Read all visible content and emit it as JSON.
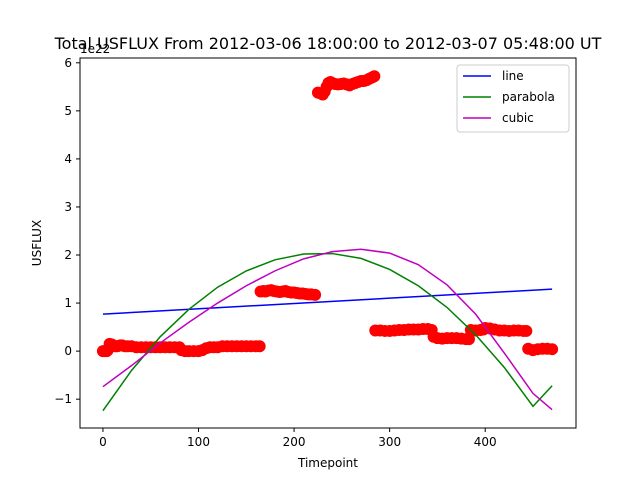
{
  "chart_data": {
    "type": "scatter",
    "title": "Total USFLUX From 2012-03-06 18:00:00 to 2012-03-07 05:48:00 UT",
    "xlabel": "Timepoint",
    "ylabel": "USFLUX",
    "y_offset_label": "1e22",
    "xlim": [
      -24,
      495
    ],
    "ylim": [
      -1.6,
      6.1
    ],
    "x_ticks": [
      0,
      100,
      200,
      300,
      400
    ],
    "x_tick_labels": [
      "0",
      "100",
      "200",
      "300",
      "400"
    ],
    "y_ticks": [
      -1,
      0,
      1,
      2,
      3,
      4,
      5,
      6
    ],
    "y_tick_labels": [
      "−1",
      "0",
      "1",
      "2",
      "3",
      "4",
      "5",
      "6"
    ],
    "grid": false,
    "legend_position": "top-right",
    "scatter_series": {
      "color": "#ff0000",
      "points": [
        [
          0,
          0.0
        ],
        [
          2,
          0.0
        ],
        [
          4,
          0.0
        ],
        [
          5,
          0.02
        ],
        [
          7,
          0.15
        ],
        [
          9,
          0.14
        ],
        [
          11,
          0.12
        ],
        [
          13,
          0.1
        ],
        [
          15,
          0.1
        ],
        [
          18,
          0.12
        ],
        [
          20,
          0.12
        ],
        [
          23,
          0.1
        ],
        [
          26,
          0.1
        ],
        [
          30,
          0.1
        ],
        [
          35,
          0.08
        ],
        [
          40,
          0.08
        ],
        [
          45,
          0.08
        ],
        [
          50,
          0.08
        ],
        [
          55,
          0.08
        ],
        [
          60,
          0.08
        ],
        [
          65,
          0.08
        ],
        [
          70,
          0.08
        ],
        [
          75,
          0.08
        ],
        [
          80,
          0.08
        ],
        [
          82,
          0.02
        ],
        [
          86,
          0.0
        ],
        [
          90,
          0.0
        ],
        [
          95,
          0.0
        ],
        [
          100,
          0.0
        ],
        [
          104,
          0.02
        ],
        [
          108,
          0.06
        ],
        [
          112,
          0.08
        ],
        [
          116,
          0.08
        ],
        [
          120,
          0.08
        ],
        [
          125,
          0.1
        ],
        [
          130,
          0.1
        ],
        [
          135,
          0.1
        ],
        [
          140,
          0.1
        ],
        [
          145,
          0.1
        ],
        [
          150,
          0.1
        ],
        [
          155,
          0.1
        ],
        [
          160,
          0.1
        ],
        [
          164,
          0.1
        ],
        [
          165,
          1.24
        ],
        [
          168,
          1.25
        ],
        [
          170,
          1.24
        ],
        [
          173,
          1.26
        ],
        [
          176,
          1.27
        ],
        [
          179,
          1.25
        ],
        [
          182,
          1.24
        ],
        [
          185,
          1.23
        ],
        [
          188,
          1.24
        ],
        [
          191,
          1.25
        ],
        [
          194,
          1.23
        ],
        [
          197,
          1.22
        ],
        [
          200,
          1.22
        ],
        [
          203,
          1.21
        ],
        [
          206,
          1.2
        ],
        [
          209,
          1.2
        ],
        [
          212,
          1.19
        ],
        [
          215,
          1.18
        ],
        [
          218,
          1.18
        ],
        [
          222,
          1.17
        ],
        [
          225,
          5.38
        ],
        [
          228,
          5.36
        ],
        [
          230,
          5.34
        ],
        [
          232,
          5.4
        ],
        [
          234,
          5.5
        ],
        [
          236,
          5.58
        ],
        [
          238,
          5.6
        ],
        [
          240,
          5.58
        ],
        [
          243,
          5.56
        ],
        [
          246,
          5.55
        ],
        [
          249,
          5.56
        ],
        [
          252,
          5.57
        ],
        [
          255,
          5.55
        ],
        [
          258,
          5.53
        ],
        [
          261,
          5.56
        ],
        [
          264,
          5.58
        ],
        [
          267,
          5.6
        ],
        [
          270,
          5.62
        ],
        [
          273,
          5.62
        ],
        [
          276,
          5.64
        ],
        [
          279,
          5.67
        ],
        [
          282,
          5.7
        ],
        [
          284,
          5.72
        ],
        [
          285,
          0.43
        ],
        [
          290,
          0.43
        ],
        [
          295,
          0.42
        ],
        [
          300,
          0.42
        ],
        [
          305,
          0.43
        ],
        [
          310,
          0.44
        ],
        [
          315,
          0.44
        ],
        [
          320,
          0.45
        ],
        [
          325,
          0.45
        ],
        [
          330,
          0.45
        ],
        [
          335,
          0.46
        ],
        [
          340,
          0.46
        ],
        [
          344,
          0.44
        ],
        [
          346,
          0.3
        ],
        [
          350,
          0.27
        ],
        [
          355,
          0.26
        ],
        [
          360,
          0.27
        ],
        [
          365,
          0.27
        ],
        [
          370,
          0.27
        ],
        [
          375,
          0.26
        ],
        [
          380,
          0.25
        ],
        [
          383,
          0.25
        ],
        [
          385,
          0.44
        ],
        [
          390,
          0.43
        ],
        [
          395,
          0.44
        ],
        [
          398,
          0.45
        ],
        [
          400,
          0.48
        ],
        [
          405,
          0.47
        ],
        [
          410,
          0.45
        ],
        [
          415,
          0.43
        ],
        [
          420,
          0.43
        ],
        [
          425,
          0.42
        ],
        [
          430,
          0.43
        ],
        [
          435,
          0.43
        ],
        [
          440,
          0.42
        ],
        [
          443,
          0.42
        ],
        [
          445,
          0.05
        ],
        [
          450,
          0.02
        ],
        [
          455,
          0.04
        ],
        [
          460,
          0.05
        ],
        [
          465,
          0.05
        ],
        [
          470,
          0.04
        ]
      ]
    },
    "fit_series": [
      {
        "name": "line",
        "color": "#0000ff",
        "x": [
          0,
          470
        ],
        "y": [
          0.77,
          1.29
        ]
      },
      {
        "name": "parabola",
        "color": "#008000",
        "x": [
          0,
          30,
          60,
          90,
          120,
          150,
          180,
          210,
          240,
          270,
          300,
          330,
          360,
          390,
          420,
          450,
          470
        ],
        "y": [
          -1.24,
          -0.4,
          0.3,
          0.87,
          1.33,
          1.67,
          1.9,
          2.02,
          2.03,
          1.93,
          1.7,
          1.36,
          0.91,
          0.34,
          -0.34,
          -1.15,
          -0.72
        ]
      },
      {
        "name": "cubic",
        "color": "#bf00bf",
        "x": [
          0,
          30,
          60,
          90,
          120,
          150,
          180,
          210,
          240,
          270,
          300,
          330,
          360,
          390,
          420,
          450,
          470
        ],
        "y": [
          -0.74,
          -0.3,
          0.17,
          0.6,
          1.0,
          1.36,
          1.67,
          1.92,
          2.07,
          2.12,
          2.04,
          1.8,
          1.38,
          0.77,
          -0.04,
          -0.88,
          -1.22
        ]
      }
    ]
  }
}
